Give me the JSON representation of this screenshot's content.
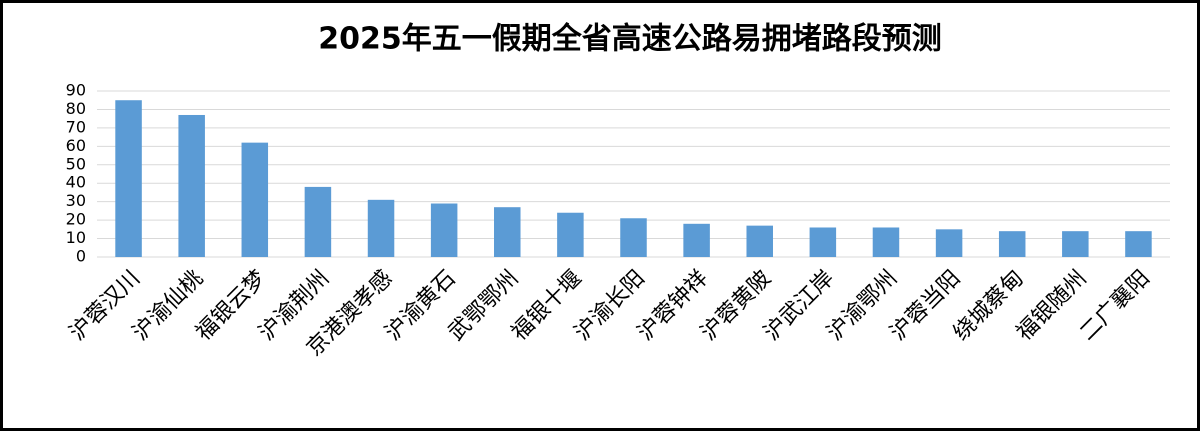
{
  "chart_data": {
    "type": "bar",
    "title": "2025年五一假期全省高速公路易拥堵路段预测",
    "categories": [
      "沪蓉汉川",
      "沪渝仙桃",
      "福银云梦",
      "沪渝荆州",
      "京港澳孝感",
      "沪渝黄石",
      "武鄂鄂州",
      "福银十堰",
      "沪渝长阳",
      "沪蓉钟祥",
      "沪蓉黄陂",
      "沪武江岸",
      "沪渝鄂州",
      "沪蓉当阳",
      "绕城蔡甸",
      "福银随州",
      "二广襄阳"
    ],
    "values": [
      85,
      77,
      62,
      38,
      31,
      29,
      27,
      24,
      21,
      18,
      17,
      16,
      16,
      15,
      14,
      14,
      14
    ],
    "color": "#5b9bd5",
    "ylim": [
      0,
      90
    ],
    "yticks": [
      0,
      10,
      20,
      30,
      40,
      50,
      60,
      70,
      80,
      90
    ],
    "grid": true
  }
}
